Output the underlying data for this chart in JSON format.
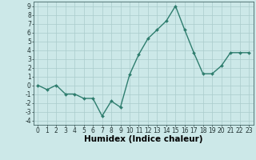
{
  "x": [
    0,
    1,
    2,
    3,
    4,
    5,
    6,
    7,
    8,
    9,
    10,
    11,
    12,
    13,
    14,
    15,
    16,
    17,
    18,
    19,
    20,
    21,
    22,
    23
  ],
  "y": [
    0,
    -0.5,
    0,
    -1,
    -1,
    -1.5,
    -1.5,
    -3.5,
    -1.8,
    -2.5,
    1.2,
    3.5,
    5.3,
    6.3,
    7.3,
    9.0,
    6.3,
    3.7,
    1.3,
    1.3,
    2.2,
    3.7,
    3.7,
    3.7
  ],
  "line_color": "#2e7d6e",
  "marker": "D",
  "marker_size": 2.0,
  "bg_color": "#cce8e8",
  "grid_color": "#aacccc",
  "xlabel": "Humidex (Indice chaleur)",
  "xlim": [
    -0.5,
    23.5
  ],
  "ylim": [
    -4.5,
    9.5
  ],
  "yticks": [
    -4,
    -3,
    -2,
    -1,
    0,
    1,
    2,
    3,
    4,
    5,
    6,
    7,
    8,
    9
  ],
  "xticks": [
    0,
    1,
    2,
    3,
    4,
    5,
    6,
    7,
    8,
    9,
    10,
    11,
    12,
    13,
    14,
    15,
    16,
    17,
    18,
    19,
    20,
    21,
    22,
    23
  ],
  "tick_fontsize": 5.5,
  "xlabel_fontsize": 7.5,
  "line_width": 1.0
}
